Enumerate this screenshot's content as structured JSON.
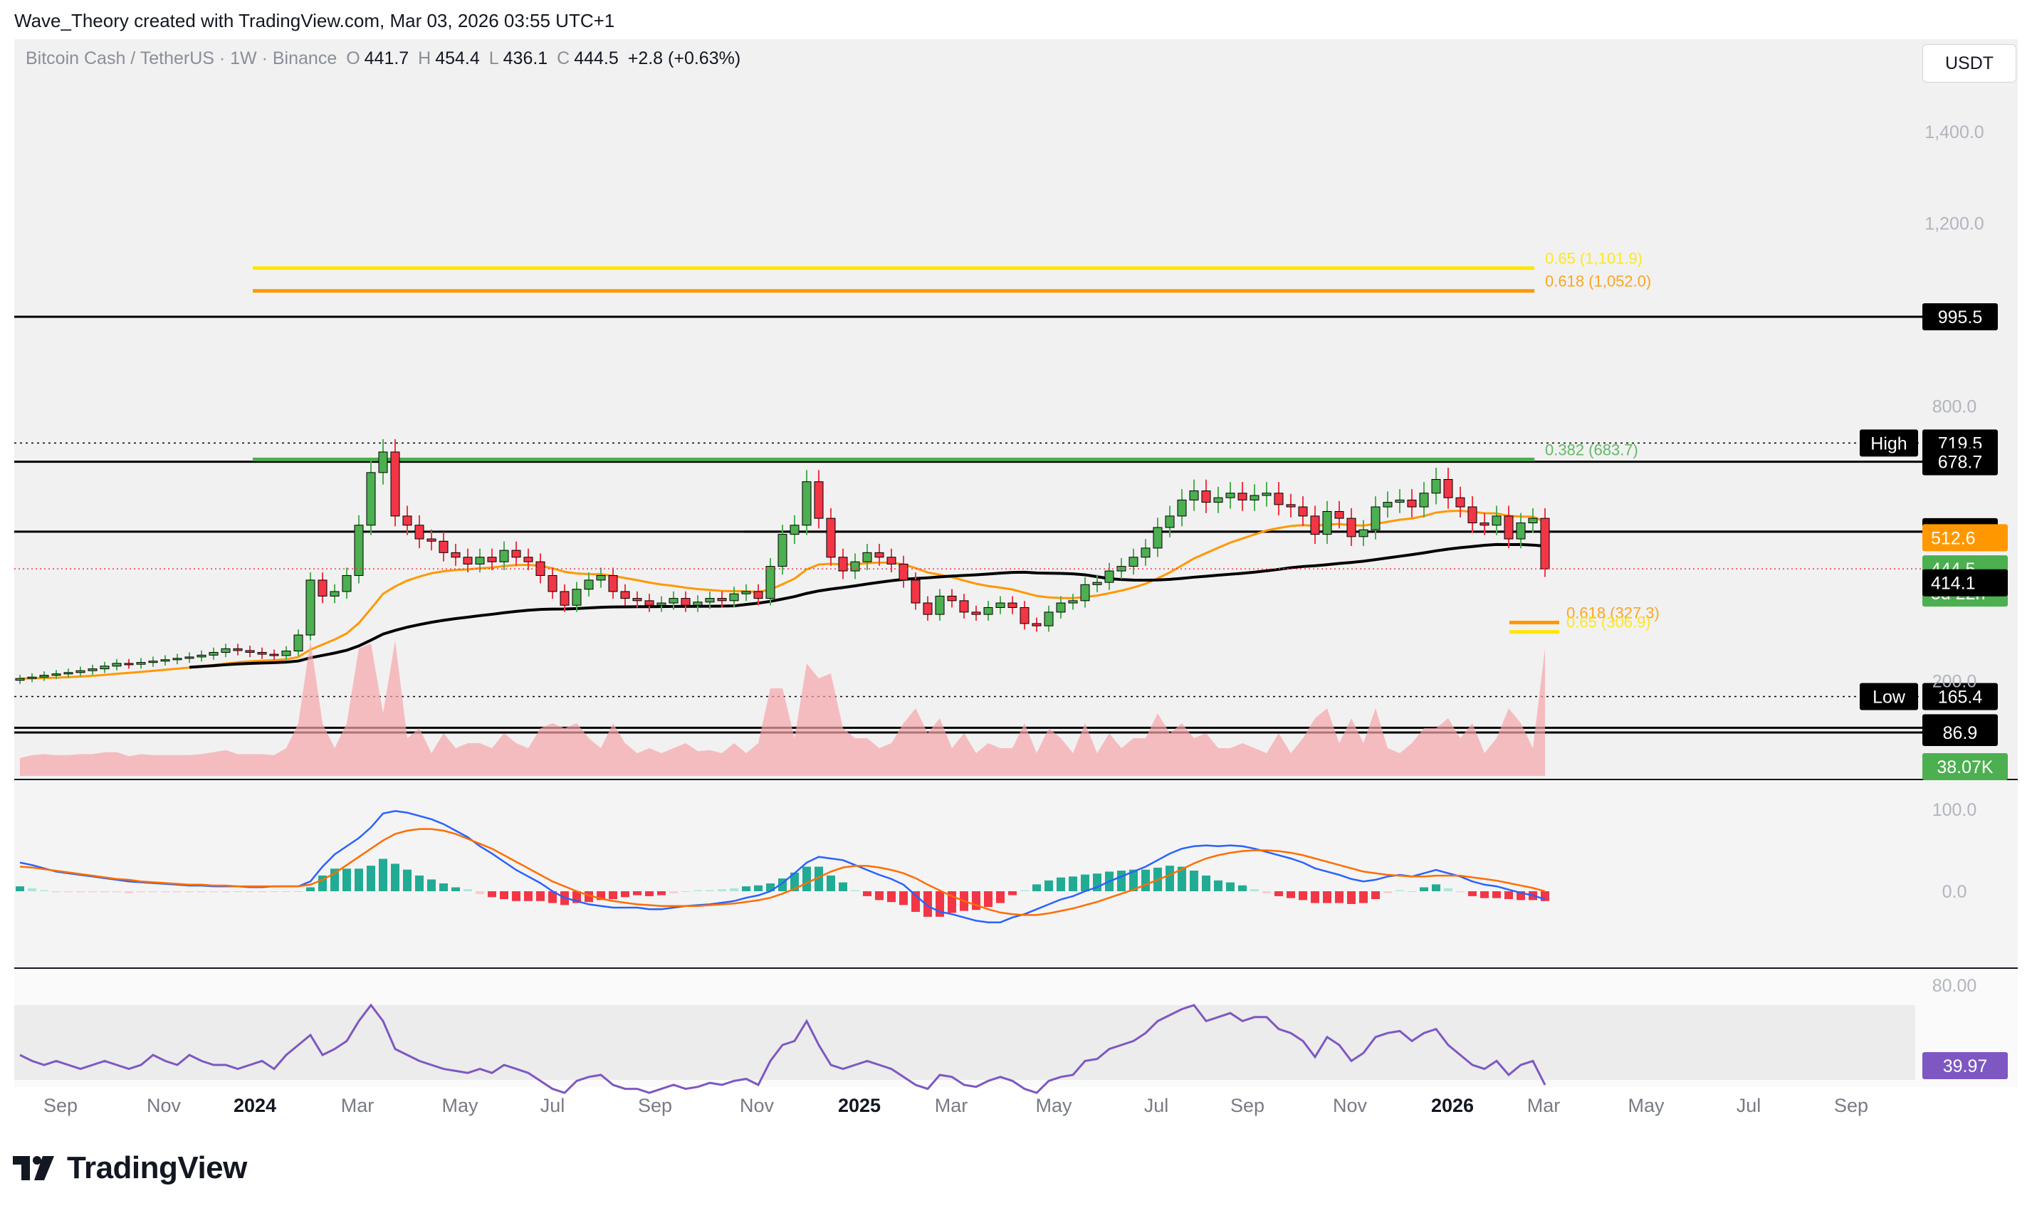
{
  "header": {
    "created_text": "Wave_Theory created with TradingView.com, Mar 03, 2026 03:55 UTC+1"
  },
  "legend": {
    "symbol": "Bitcoin Cash / TetherUS · 1W · Binance",
    "open_label": "O",
    "open": "441.7",
    "high_label": "H",
    "high": "454.4",
    "low_label": "L",
    "low": "436.1",
    "close_label": "C",
    "close": "444.5",
    "change": "+2.8 (+0.63%)"
  },
  "currency_button": "USDT",
  "brand": {
    "name": "TradingView"
  },
  "colors": {
    "up": "#22ab94",
    "down": "#f23645",
    "candle_up": "#4caf50",
    "candle_down": "#f23645",
    "ema50": "#ff9800",
    "sma200": "#000000",
    "fib_yellow": "#ffe600",
    "fib_orange": "#ff9800",
    "fib_green": "#4caf50",
    "macd": "#2962ff",
    "signal": "#ff6d00",
    "rsi": "#7e57c2",
    "band": "#e6e6e6"
  },
  "chart_data": {
    "type": "candlestick",
    "symbol": "Bitcoin Cash / TetherUS",
    "timeframe": "1W",
    "x_axis": {
      "tick_labels": [
        "Sep",
        "Nov",
        "2024",
        "Mar",
        "May",
        "Jul",
        "Sep",
        "Nov",
        "2025",
        "Mar",
        "May",
        "Jul",
        "Sep",
        "Nov",
        "2026",
        "Mar",
        "May",
        "Jul",
        "Sep"
      ]
    },
    "y_axis": {
      "tick_labels": [
        "1,400.0",
        "1,200.0",
        "800.0",
        "200.0"
      ],
      "ylim": [
        20,
        1460
      ]
    },
    "closes": [
      205,
      208,
      212,
      215,
      218,
      222,
      226,
      232,
      238,
      236,
      240,
      243,
      246,
      249,
      252,
      256,
      262,
      270,
      266,
      262,
      258,
      255,
      265,
      300,
      420,
      385,
      395,
      430,
      540,
      655,
      700,
      560,
      540,
      510,
      505,
      480,
      470,
      455,
      470,
      460,
      485,
      470,
      460,
      430,
      395,
      365,
      400,
      420,
      430,
      395,
      380,
      375,
      365,
      370,
      380,
      365,
      372,
      380,
      375,
      390,
      395,
      380,
      450,
      520,
      540,
      635,
      555,
      470,
      440,
      460,
      480,
      470,
      455,
      420,
      370,
      345,
      385,
      375,
      350,
      345,
      360,
      370,
      360,
      325,
      320,
      350,
      370,
      375,
      410,
      415,
      440,
      450,
      470,
      490,
      535,
      560,
      595,
      615,
      590,
      600,
      610,
      595,
      605,
      610,
      585,
      580,
      560,
      520,
      570,
      555,
      515,
      530,
      580,
      590,
      595,
      580,
      610,
      640,
      600,
      580,
      545,
      540,
      560,
      510,
      545,
      555,
      444.5
    ],
    "moving_averages": [
      {
        "type": "EMA",
        "color": "#ff9800",
        "current": 512.6
      },
      {
        "type": "SMA",
        "color": "#000000",
        "current": 414.1
      }
    ],
    "levels": [
      {
        "value": 995.5,
        "label": "995.5",
        "style": "solid"
      },
      {
        "value": 719.5,
        "label": "719.5",
        "tag": "High",
        "style": "dotted"
      },
      {
        "value": 678.7,
        "label": "678.7",
        "style": "solid"
      },
      {
        "value": 525.9,
        "label": "525.9",
        "style": "solid"
      },
      {
        "value": 165.4,
        "label": "165.4",
        "tag": "Low",
        "style": "dotted"
      },
      {
        "value": 97.2,
        "label": "97.2",
        "style": "solid"
      },
      {
        "value": 86.9,
        "label": "86.9",
        "style": "solid"
      }
    ],
    "fib_levels": [
      {
        "label": "0.65 (1,101.9)",
        "value": 1101.9,
        "color": "#ffe600"
      },
      {
        "label": "0.618 (1,052.0)",
        "value": 1052.0,
        "color": "#ff9800"
      },
      {
        "label": "0.382 (683.7)",
        "value": 683.7,
        "color": "#4caf50"
      },
      {
        "label": "0.618 (327.3)",
        "value": 327.3,
        "color": "#ff9800"
      },
      {
        "label": "0.65 (306.9)",
        "value": 306.9,
        "color": "#ffe600"
      }
    ],
    "price_tags": [
      {
        "label": "512.6",
        "color": "#ff9800"
      },
      {
        "label": "444.5",
        "sub": "5d 22h",
        "color": "#4caf50"
      },
      {
        "label": "414.1",
        "color": "#000000"
      }
    ],
    "volume": {
      "last_label": "38.07K"
    },
    "macd": {
      "y_tick_labels": [
        "100.0",
        "0.0"
      ],
      "macd": [
        35,
        32,
        28,
        24,
        22,
        20,
        18,
        16,
        14,
        12,
        11,
        10,
        9,
        8,
        7,
        7,
        6,
        6,
        6,
        5,
        5,
        6,
        6,
        6,
        12,
        30,
        45,
        55,
        65,
        78,
        95,
        98,
        96,
        92,
        88,
        82,
        74,
        66,
        55,
        46,
        36,
        26,
        18,
        10,
        0,
        -8,
        -12,
        -16,
        -18,
        -20,
        -20,
        -20,
        -22,
        -22,
        -20,
        -18,
        -17,
        -16,
        -14,
        -12,
        -8,
        -5,
        0,
        10,
        22,
        35,
        42,
        40,
        38,
        32,
        26,
        20,
        15,
        8,
        -5,
        -18,
        -25,
        -28,
        -32,
        -36,
        -38,
        -38,
        -32,
        -28,
        -22,
        -16,
        -10,
        -6,
        0,
        5,
        12,
        18,
        24,
        30,
        38,
        46,
        52,
        55,
        56,
        55,
        56,
        55,
        52,
        48,
        44,
        40,
        35,
        28,
        24,
        20,
        15,
        12,
        14,
        18,
        20,
        18,
        22,
        26,
        22,
        18,
        12,
        8,
        6,
        2,
        -2,
        -5,
        -10
      ],
      "signal": [
        30,
        29,
        27,
        25,
        23,
        21,
        19,
        17,
        15,
        14,
        12,
        11,
        10,
        9,
        8,
        8,
        7,
        7,
        6,
        6,
        6,
        6,
        6,
        6,
        8,
        14,
        22,
        32,
        42,
        52,
        62,
        70,
        74,
        76,
        76,
        74,
        70,
        64,
        58,
        52,
        44,
        36,
        28,
        20,
        12,
        6,
        0,
        -5,
        -9,
        -12,
        -14,
        -16,
        -17,
        -18,
        -18,
        -18,
        -18,
        -17,
        -16,
        -15,
        -13,
        -11,
        -8,
        -3,
        3,
        10,
        17,
        24,
        29,
        31,
        31,
        29,
        26,
        22,
        16,
        8,
        1,
        -6,
        -12,
        -17,
        -22,
        -26,
        -28,
        -29,
        -29,
        -27,
        -24,
        -21,
        -17,
        -13,
        -8,
        -3,
        2,
        8,
        14,
        20,
        27,
        34,
        40,
        44,
        47,
        49,
        50,
        50,
        49,
        47,
        44,
        40,
        36,
        32,
        28,
        24,
        22,
        20,
        19,
        18,
        18,
        19,
        19,
        19,
        17,
        15,
        13,
        10,
        7,
        4,
        0
      ]
    },
    "rsi": {
      "y_tick_labels": [
        "80.00"
      ],
      "last_label": "39.97",
      "values": [
        55,
        52,
        50,
        52,
        50,
        48,
        50,
        52,
        50,
        48,
        50,
        55,
        52,
        50,
        55,
        52,
        50,
        50,
        48,
        50,
        52,
        48,
        55,
        60,
        65,
        55,
        58,
        62,
        72,
        80,
        72,
        58,
        55,
        52,
        50,
        48,
        47,
        46,
        48,
        46,
        50,
        48,
        46,
        42,
        38,
        36,
        42,
        44,
        45,
        40,
        38,
        38,
        36,
        38,
        40,
        38,
        39,
        41,
        40,
        42,
        43,
        40,
        52,
        60,
        62,
        72,
        60,
        50,
        48,
        50,
        52,
        50,
        48,
        44,
        40,
        38,
        45,
        44,
        40,
        39,
        42,
        44,
        42,
        38,
        36,
        42,
        44,
        45,
        52,
        53,
        58,
        60,
        62,
        66,
        72,
        75,
        78,
        80,
        72,
        74,
        76,
        72,
        74,
        74,
        68,
        66,
        62,
        54,
        64,
        60,
        52,
        56,
        64,
        66,
        67,
        62,
        66,
        68,
        60,
        55,
        50,
        48,
        52,
        45,
        50,
        52,
        39.97
      ]
    }
  }
}
